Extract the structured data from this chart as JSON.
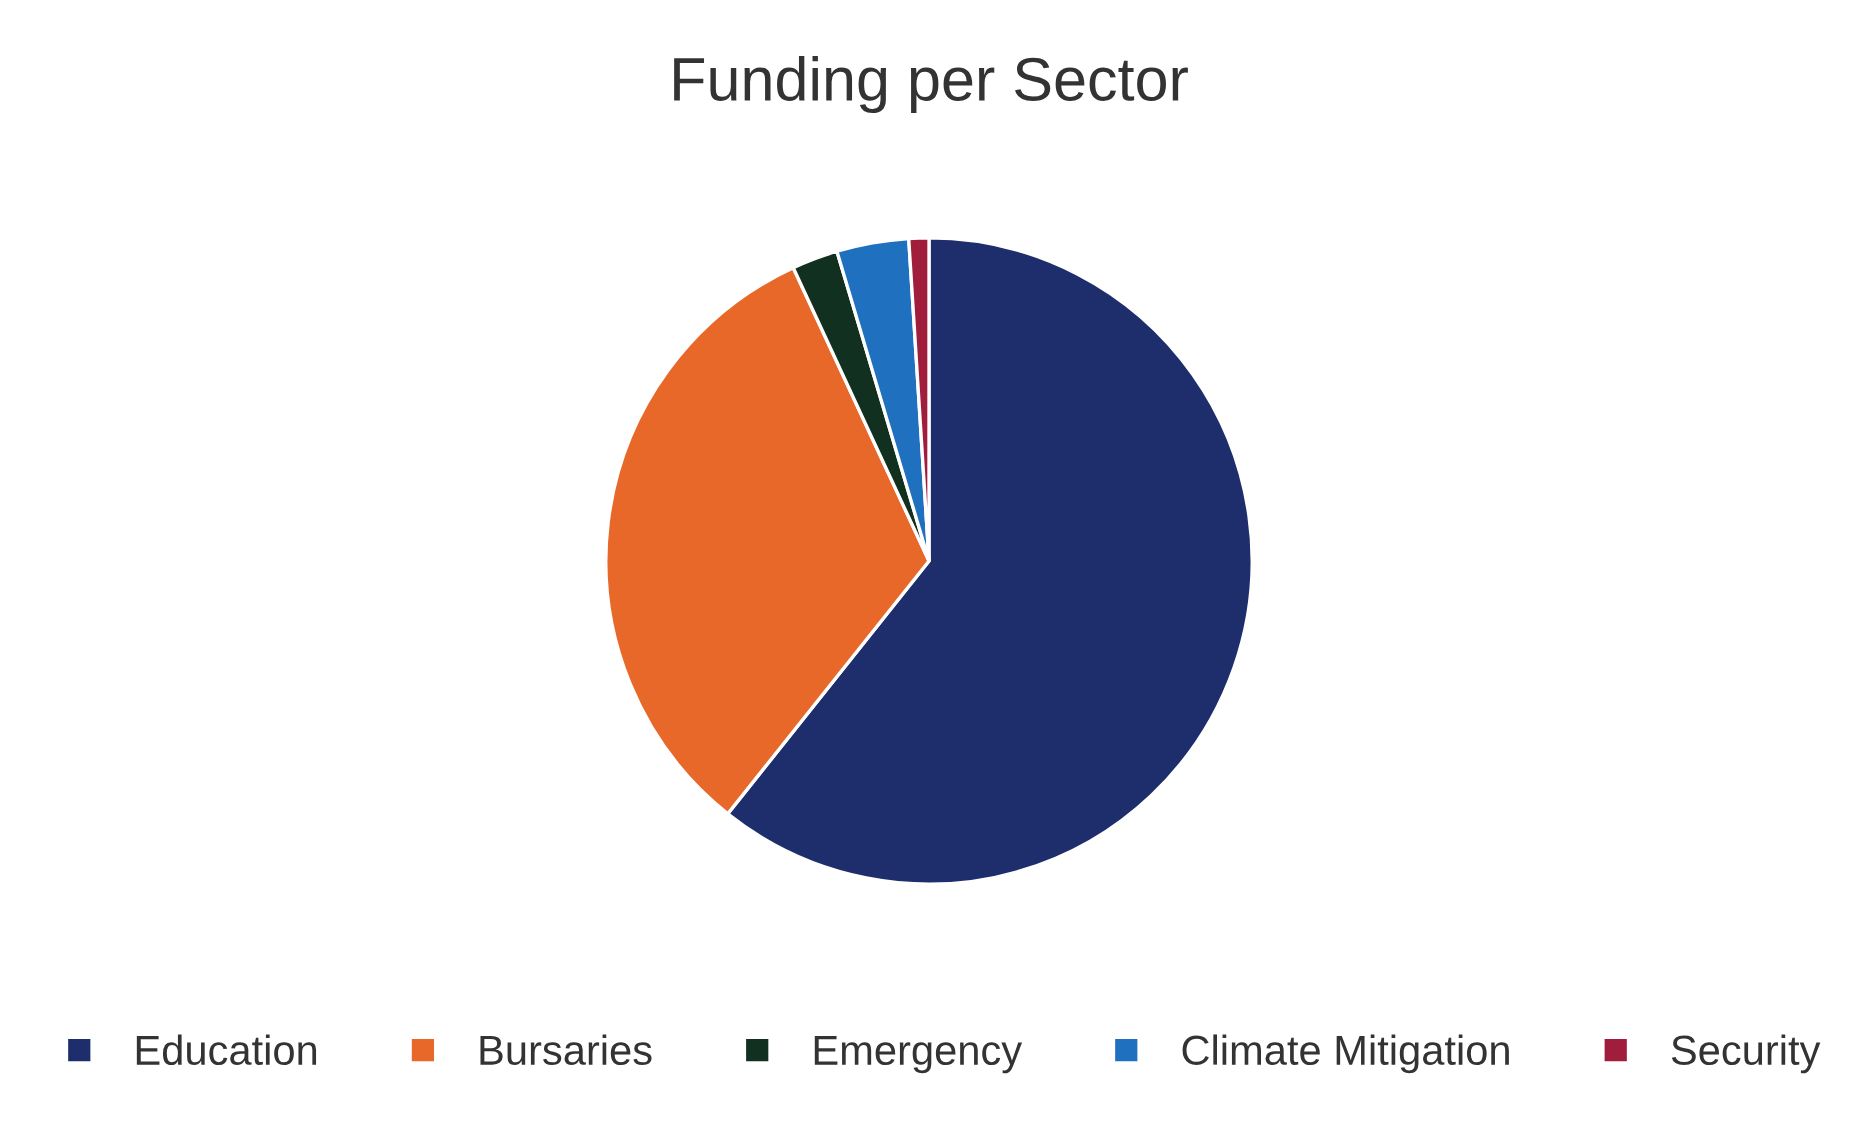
{
  "chart_data": {
    "type": "pie",
    "title": "Funding per Sector",
    "categories": [
      "Education",
      "Bursaries",
      "Emergency",
      "Climate Mitigation",
      "Security"
    ],
    "values": [
      60.7,
      32.4,
      2.3,
      3.6,
      1.0
    ],
    "colors": [
      "#1e2d6b",
      "#e8682a",
      "#123020",
      "#2070c0",
      "#a01e3c"
    ],
    "legend": "bottom"
  }
}
